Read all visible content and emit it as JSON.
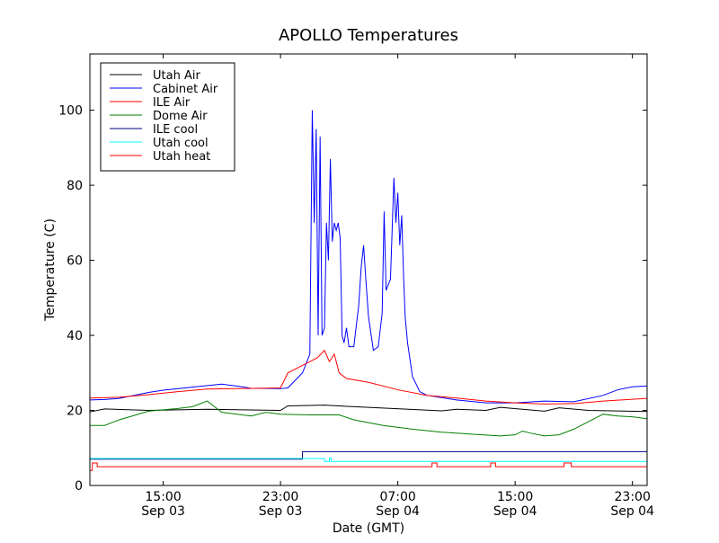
{
  "chart_data": {
    "type": "line",
    "title": "APOLLO Temperatures",
    "xlabel": "Date (GMT)",
    "ylabel": "Temperature (C)",
    "xlim": [
      "2012-09-03 10:00",
      "2012-09-05 00:00"
    ],
    "ylim": [
      0,
      115
    ],
    "yticks": [
      0,
      20,
      40,
      60,
      80,
      100
    ],
    "xticks": [
      {
        "x": "2012-09-03 15:00",
        "label1": "15:00",
        "label2": "Sep 03"
      },
      {
        "x": "2012-09-03 23:00",
        "label1": "23:00",
        "label2": "Sep 03"
      },
      {
        "x": "2012-09-04 07:00",
        "label1": "07:00",
        "label2": "Sep 04"
      },
      {
        "x": "2012-09-04 15:00",
        "label1": "15:00",
        "label2": "Sep 04"
      },
      {
        "x": "2012-09-04 23:00",
        "label1": "23:00",
        "label2": "Sep 04"
      }
    ],
    "grid": false,
    "legend_position": "top-left",
    "series": [
      {
        "name": "Utah Air",
        "color": "#000000",
        "points": [
          [
            "2012-09-03 10:00",
            19.6
          ],
          [
            "2012-09-03 11:00",
            20.4
          ],
          [
            "2012-09-03 14:00",
            20.0
          ],
          [
            "2012-09-03 18:00",
            20.3
          ],
          [
            "2012-09-03 23:00",
            20.0
          ],
          [
            "2012-09-03 23:30",
            21.2
          ],
          [
            "2012-09-04 02:00",
            21.4
          ],
          [
            "2012-09-04 05:00",
            20.8
          ],
          [
            "2012-09-04 10:00",
            19.9
          ],
          [
            "2012-09-04 11:00",
            20.3
          ],
          [
            "2012-09-04 13:00",
            20.0
          ],
          [
            "2012-09-04 14:00",
            20.8
          ],
          [
            "2012-09-04 17:00",
            19.8
          ],
          [
            "2012-09-04 18:00",
            20.7
          ],
          [
            "2012-09-04 20:00",
            20.0
          ],
          [
            "2012-09-05 00:00",
            19.7
          ]
        ]
      },
      {
        "name": "Cabinet Air",
        "color": "#0000ff",
        "points": [
          [
            "2012-09-03 10:00",
            22.8
          ],
          [
            "2012-09-03 11:00",
            22.9
          ],
          [
            "2012-09-03 12:00",
            23.2
          ],
          [
            "2012-09-03 13:00",
            24.0
          ],
          [
            "2012-09-03 14:00",
            24.8
          ],
          [
            "2012-09-03 15:00",
            25.4
          ],
          [
            "2012-09-03 17:00",
            26.2
          ],
          [
            "2012-09-03 19:00",
            27.0
          ],
          [
            "2012-09-03 20:00",
            26.5
          ],
          [
            "2012-09-03 21:00",
            25.9
          ],
          [
            "2012-09-03 23:00",
            25.8
          ],
          [
            "2012-09-03 23:30",
            26.0
          ],
          [
            "2012-09-04 00:00",
            28.0
          ],
          [
            "2012-09-04 00:30",
            30.0
          ],
          [
            "2012-09-04 01:00",
            35.0
          ],
          [
            "2012-09-04 01:10",
            100.0
          ],
          [
            "2012-09-04 01:18",
            70.0
          ],
          [
            "2012-09-04 01:26",
            95.0
          ],
          [
            "2012-09-04 01:34",
            40.0
          ],
          [
            "2012-09-04 01:42",
            93.0
          ],
          [
            "2012-09-04 01:50",
            40.0
          ],
          [
            "2012-09-04 02:00",
            42.0
          ],
          [
            "2012-09-04 02:08",
            70.0
          ],
          [
            "2012-09-04 02:16",
            60.0
          ],
          [
            "2012-09-04 02:24",
            87.0
          ],
          [
            "2012-09-04 02:32",
            65.0
          ],
          [
            "2012-09-04 02:40",
            70.0
          ],
          [
            "2012-09-04 02:48",
            68.0
          ],
          [
            "2012-09-04 02:56",
            70.0
          ],
          [
            "2012-09-04 03:04",
            66.0
          ],
          [
            "2012-09-04 03:12",
            40.0
          ],
          [
            "2012-09-04 03:20",
            38.0
          ],
          [
            "2012-09-04 03:30",
            42.0
          ],
          [
            "2012-09-04 03:40",
            37.0
          ],
          [
            "2012-09-04 04:00",
            37.0
          ],
          [
            "2012-09-04 04:20",
            48.0
          ],
          [
            "2012-09-04 04:30",
            58.0
          ],
          [
            "2012-09-04 04:40",
            64.0
          ],
          [
            "2012-09-04 04:48",
            56.0
          ],
          [
            "2012-09-04 05:00",
            45.0
          ],
          [
            "2012-09-04 05:20",
            36.0
          ],
          [
            "2012-09-04 05:40",
            37.0
          ],
          [
            "2012-09-04 05:56",
            46.0
          ],
          [
            "2012-09-04 06:04",
            73.0
          ],
          [
            "2012-09-04 06:12",
            52.0
          ],
          [
            "2012-09-04 06:30",
            55.0
          ],
          [
            "2012-09-04 06:44",
            82.0
          ],
          [
            "2012-09-04 06:52",
            70.0
          ],
          [
            "2012-09-04 07:00",
            78.0
          ],
          [
            "2012-09-04 07:08",
            64.0
          ],
          [
            "2012-09-04 07:16",
            72.0
          ],
          [
            "2012-09-04 07:24",
            55.0
          ],
          [
            "2012-09-04 07:30",
            45.0
          ],
          [
            "2012-09-04 07:40",
            38.0
          ],
          [
            "2012-09-04 08:00",
            29.0
          ],
          [
            "2012-09-04 08:30",
            25.0
          ],
          [
            "2012-09-04 09:00",
            24.0
          ],
          [
            "2012-09-04 11:00",
            22.8
          ],
          [
            "2012-09-04 13:00",
            22.0
          ],
          [
            "2012-09-04 15:00",
            22.0
          ],
          [
            "2012-09-04 17:00",
            22.5
          ],
          [
            "2012-09-04 19:00",
            22.3
          ],
          [
            "2012-09-04 21:00",
            24.0
          ],
          [
            "2012-09-04 22:00",
            25.5
          ],
          [
            "2012-09-04 23:00",
            26.3
          ],
          [
            "2012-09-05 00:00",
            26.5
          ]
        ]
      },
      {
        "name": "ILE Air",
        "color": "#ff0000",
        "points": [
          [
            "2012-09-03 10:00",
            23.3
          ],
          [
            "2012-09-03 12:00",
            23.5
          ],
          [
            "2012-09-03 14:00",
            24.2
          ],
          [
            "2012-09-03 16:00",
            25.0
          ],
          [
            "2012-09-03 18:00",
            25.7
          ],
          [
            "2012-09-03 20:00",
            25.8
          ],
          [
            "2012-09-03 23:00",
            26.0
          ],
          [
            "2012-09-03 23:30",
            30.0
          ],
          [
            "2012-09-04 00:30",
            32.0
          ],
          [
            "2012-09-04 01:30",
            34.0
          ],
          [
            "2012-09-04 02:00",
            36.0
          ],
          [
            "2012-09-04 02:20",
            33.0
          ],
          [
            "2012-09-04 02:40",
            35.0
          ],
          [
            "2012-09-04 03:00",
            30.0
          ],
          [
            "2012-09-04 03:30",
            28.5
          ],
          [
            "2012-09-04 05:00",
            27.5
          ],
          [
            "2012-09-04 07:00",
            25.5
          ],
          [
            "2012-09-04 09:00",
            24.0
          ],
          [
            "2012-09-04 11:00",
            23.3
          ],
          [
            "2012-09-04 13:00",
            22.5
          ],
          [
            "2012-09-04 15:00",
            22.0
          ],
          [
            "2012-09-04 17:00",
            21.7
          ],
          [
            "2012-09-04 19:00",
            21.8
          ],
          [
            "2012-09-04 21:00",
            22.5
          ],
          [
            "2012-09-05 00:00",
            23.2
          ]
        ]
      },
      {
        "name": "Dome Air",
        "color": "#008000",
        "points": [
          [
            "2012-09-03 10:00",
            16.0
          ],
          [
            "2012-09-03 11:00",
            16.0
          ],
          [
            "2012-09-03 12:00",
            17.5
          ],
          [
            "2012-09-03 14:00",
            19.8
          ],
          [
            "2012-09-03 16:00",
            20.5
          ],
          [
            "2012-09-03 17:00",
            21.0
          ],
          [
            "2012-09-03 18:00",
            22.5
          ],
          [
            "2012-09-03 18:30",
            21.0
          ],
          [
            "2012-09-03 19:00",
            19.5
          ],
          [
            "2012-09-03 21:00",
            18.5
          ],
          [
            "2012-09-03 22:00",
            19.5
          ],
          [
            "2012-09-03 23:00",
            19.0
          ],
          [
            "2012-09-04 01:00",
            18.8
          ],
          [
            "2012-09-04 03:00",
            18.8
          ],
          [
            "2012-09-04 04:00",
            17.5
          ],
          [
            "2012-09-04 06:00",
            16.0
          ],
          [
            "2012-09-04 08:00",
            15.0
          ],
          [
            "2012-09-04 10:00",
            14.2
          ],
          [
            "2012-09-04 12:00",
            13.7
          ],
          [
            "2012-09-04 14:00",
            13.2
          ],
          [
            "2012-09-04 15:00",
            13.5
          ],
          [
            "2012-09-04 15:30",
            14.5
          ],
          [
            "2012-09-04 16:00",
            14.0
          ],
          [
            "2012-09-04 17:00",
            13.2
          ],
          [
            "2012-09-04 18:00",
            13.5
          ],
          [
            "2012-09-04 19:00",
            15.0
          ],
          [
            "2012-09-04 20:00",
            17.0
          ],
          [
            "2012-09-04 21:00",
            19.0
          ],
          [
            "2012-09-04 22:00",
            18.5
          ],
          [
            "2012-09-04 23:00",
            18.3
          ],
          [
            "2012-09-05 00:00",
            17.8
          ]
        ]
      },
      {
        "name": "ILE cool",
        "color": "#000080",
        "points": [
          [
            "2012-09-03 10:00",
            7.0
          ],
          [
            "2012-09-04 00:30",
            7.0
          ],
          [
            "2012-09-04 00:30",
            9.0
          ],
          [
            "2012-09-05 00:00",
            9.0
          ]
        ]
      },
      {
        "name": "Utah cool",
        "color": "#00ffff",
        "points": [
          [
            "2012-09-03 10:00",
            7.2
          ],
          [
            "2012-09-04 02:00",
            7.2
          ],
          [
            "2012-09-04 02:00",
            6.4
          ],
          [
            "2012-09-04 02:20",
            6.4
          ],
          [
            "2012-09-04 02:20",
            7.3
          ],
          [
            "2012-09-04 02:26",
            7.3
          ],
          [
            "2012-09-04 02:26",
            6.4
          ],
          [
            "2012-09-05 00:00",
            6.4
          ]
        ]
      },
      {
        "name": "Utah heat",
        "color": "#ff0000",
        "points": [
          [
            "2012-09-03 10:00",
            4.0
          ],
          [
            "2012-09-03 10:10",
            4.0
          ],
          [
            "2012-09-03 10:10",
            6.0
          ],
          [
            "2012-09-03 10:30",
            6.0
          ],
          [
            "2012-09-03 10:30",
            5.0
          ],
          [
            "2012-09-04 09:20",
            5.0
          ],
          [
            "2012-09-04 09:20",
            6.0
          ],
          [
            "2012-09-04 09:40",
            6.0
          ],
          [
            "2012-09-04 09:40",
            5.0
          ],
          [
            "2012-09-04 13:20",
            5.0
          ],
          [
            "2012-09-04 13:20",
            6.0
          ],
          [
            "2012-09-04 13:40",
            6.0
          ],
          [
            "2012-09-04 13:40",
            5.0
          ],
          [
            "2012-09-04 18:20",
            5.0
          ],
          [
            "2012-09-04 18:20",
            6.0
          ],
          [
            "2012-09-04 18:50",
            6.0
          ],
          [
            "2012-09-04 18:50",
            5.0
          ],
          [
            "2012-09-05 00:00",
            5.0
          ]
        ]
      }
    ]
  }
}
